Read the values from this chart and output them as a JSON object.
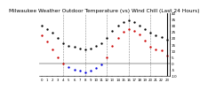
{
  "title": "Milwaukee Weather Outdoor Temperature (vs) Wind Chill (Last 24 Hours)",
  "title_fontsize": 4.2,
  "background_color": "#ffffff",
  "plot_bg_color": "#ffffff",
  "grid_color": "#888888",
  "hours": [
    0,
    1,
    2,
    3,
    4,
    5,
    6,
    7,
    8,
    9,
    10,
    11,
    12,
    13,
    14,
    15,
    16,
    17,
    18,
    19,
    20,
    21,
    22,
    23
  ],
  "temp": [
    30,
    27,
    24,
    20,
    16,
    14,
    13,
    12,
    11,
    12,
    14,
    16,
    20,
    26,
    30,
    33,
    34,
    33,
    30,
    27,
    24,
    22,
    21,
    19
  ],
  "windchill": [
    22,
    17,
    11,
    5,
    0,
    -3,
    -5,
    -6,
    -7,
    -6,
    -4,
    -1,
    5,
    14,
    20,
    25,
    27,
    26,
    23,
    18,
    13,
    11,
    10,
    6
  ],
  "temp_color": "#000000",
  "windchill_pos_color": "#cc0000",
  "windchill_neg_color": "#0000dd",
  "ylim_min": -10,
  "ylim_max": 40,
  "yticks": [
    -10,
    -5,
    0,
    5,
    10,
    15,
    20,
    25,
    30,
    35,
    40
  ],
  "ytick_labels": [
    "-10",
    "-5",
    "0",
    "5",
    "10",
    "15",
    "20",
    "25",
    "30",
    "35",
    "40"
  ],
  "ylabel_fontsize": 3.0,
  "xtick_labels": [
    "0",
    "1",
    "2",
    "3",
    "4",
    "5",
    "6",
    "7",
    "8",
    "9",
    "10",
    "11",
    "12",
    "13",
    "14",
    "15",
    "16",
    "17",
    "18",
    "19",
    "20",
    "21",
    "22",
    "23"
  ],
  "xtick_fontsize": 2.8,
  "vline_positions": [
    4,
    8,
    12,
    16,
    20
  ],
  "marker_size": 1.4
}
